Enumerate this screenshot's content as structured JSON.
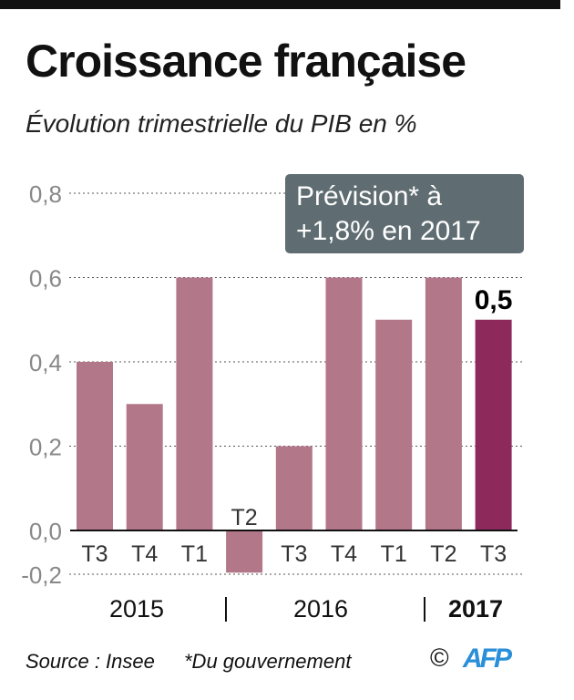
{
  "title": "Croissance française",
  "subtitle": "Évolution trimestrielle du PIB en %",
  "note": [
    "Prévision* à",
    "+1,8% en 2017"
  ],
  "footer": {
    "source": "Source : Insee",
    "footnote": "*Du gouvernement",
    "copyright": "©",
    "logo": "AFP"
  },
  "chart_data": {
    "type": "bar",
    "title": "Croissance française",
    "subtitle": "Évolution trimestrielle du PIB en %",
    "ylabel": "%",
    "categories": [
      "T3",
      "T4",
      "T1",
      "T2",
      "T3",
      "T4",
      "T1",
      "T2",
      "T3"
    ],
    "years": [
      {
        "label": "2015",
        "bold": false
      },
      {
        "label": "2016",
        "bold": false
      },
      {
        "label": "2017",
        "bold": true
      }
    ],
    "values": [
      0.4,
      0.3,
      0.6,
      -0.1,
      0.2,
      0.6,
      0.5,
      0.6,
      0.5
    ],
    "highlight_index": 8,
    "highlight_label": "0,5",
    "yticks": [
      {
        "v": 0.8,
        "label": "0,8"
      },
      {
        "v": 0.6,
        "label": "0,6"
      },
      {
        "v": 0.4,
        "label": "0,4"
      },
      {
        "v": 0.2,
        "label": "0,2"
      },
      {
        "v": 0.0,
        "label": "0,0"
      },
      {
        "v": -0.2,
        "label": "-0,2"
      }
    ],
    "ylim": [
      -0.2,
      0.8
    ],
    "grid": true,
    "colors": {
      "bar": "#b3778a",
      "highlight": "#8e2a5b",
      "note_bg": "#5f6d72",
      "logo": "#2a8fd8"
    }
  }
}
